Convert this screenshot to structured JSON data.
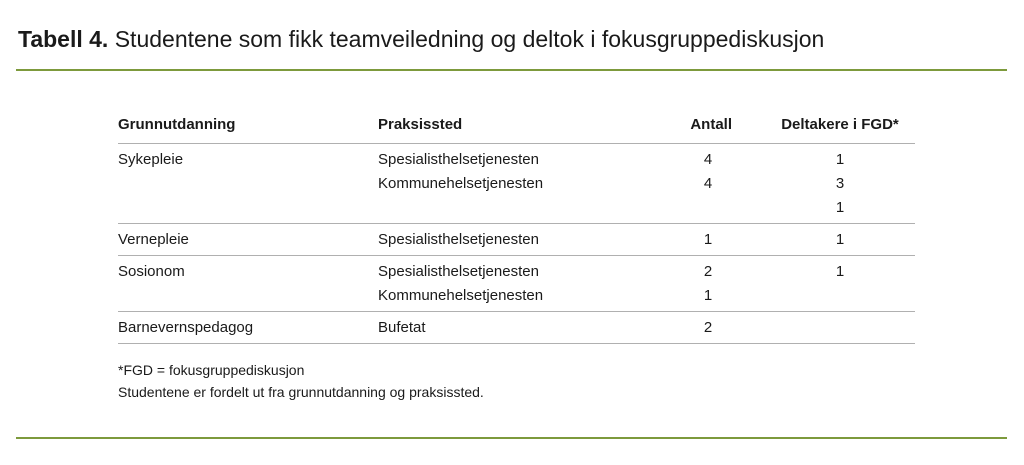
{
  "title": {
    "label": "Tabell 4.",
    "text": "Studentene som fikk teamveiledning og deltok i fokusgruppediskusjon"
  },
  "table": {
    "columns": [
      "Grunnutdanning",
      "Praksissted",
      "Antall",
      "Deltakere i FGD*"
    ],
    "rows": [
      {
        "grunnutdanning": "Sykepleie",
        "praksissted": [
          "Spesialisthelsetjenesten",
          "Kommunehelsetjenesten"
        ],
        "antall": [
          4,
          4
        ],
        "deltakere": [
          1,
          3,
          1
        ]
      },
      {
        "grunnutdanning": "Vernepleie",
        "praksissted": [
          "Spesialisthelsetjenesten"
        ],
        "antall": [
          1
        ],
        "deltakere": [
          1
        ]
      },
      {
        "grunnutdanning": "Sosionom",
        "praksissted": [
          "Spesialisthelsetjenesten",
          "Kommunehelsetjenesten"
        ],
        "antall": [
          2,
          1
        ],
        "deltakere": [
          1
        ]
      },
      {
        "grunnutdanning": "Barnevernspedagog",
        "praksissted": [
          "Bufetat"
        ],
        "antall": [
          2
        ],
        "deltakere": []
      }
    ]
  },
  "notes": [
    "*FGD = fokusgruppediskusjon",
    "Studentene er fordelt ut fra grunnutdanning og praksissted."
  ]
}
